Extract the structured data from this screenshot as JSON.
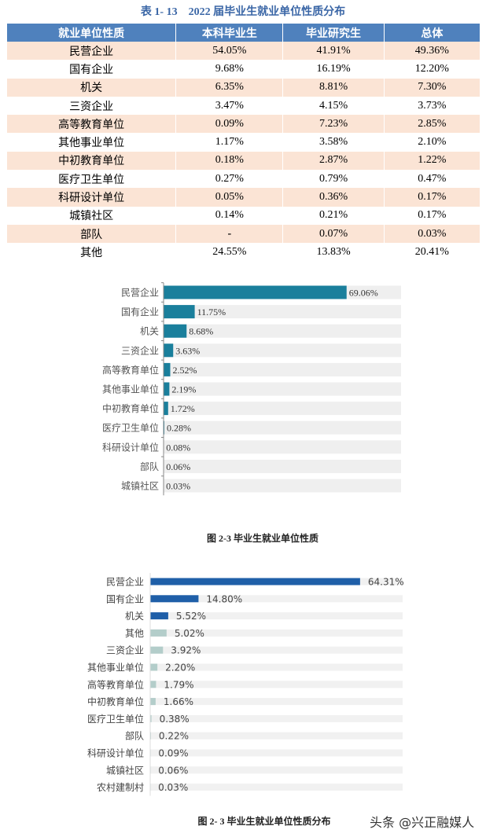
{
  "table": {
    "title": "表 1- 13　2022 届毕业生就业单位性质分布",
    "headers": [
      "就业单位性质",
      "本科毕业生",
      "毕业研究生",
      "总体"
    ],
    "rows": [
      [
        "民营企业",
        "54.05%",
        "41.91%",
        "49.36%"
      ],
      [
        "国有企业",
        "9.68%",
        "16.19%",
        "12.20%"
      ],
      [
        "机关",
        "6.35%",
        "8.81%",
        "7.30%"
      ],
      [
        "三资企业",
        "3.47%",
        "4.15%",
        "3.73%"
      ],
      [
        "高等教育单位",
        "0.09%",
        "7.23%",
        "2.85%"
      ],
      [
        "其他事业单位",
        "1.17%",
        "3.58%",
        "2.10%"
      ],
      [
        "中初教育单位",
        "0.18%",
        "2.87%",
        "1.22%"
      ],
      [
        "医疗卫生单位",
        "0.27%",
        "0.79%",
        "0.47%"
      ],
      [
        "科研设计单位",
        "0.05%",
        "0.36%",
        "0.17%"
      ],
      [
        "城镇社区",
        "0.14%",
        "0.21%",
        "0.17%"
      ],
      [
        "部队",
        "-",
        "0.07%",
        "0.03%"
      ],
      [
        "其他",
        "24.55%",
        "13.83%",
        "20.41%"
      ]
    ]
  },
  "chart_data": [
    {
      "type": "bar",
      "orientation": "horizontal",
      "caption": "图 2-3  毕业生就业单位性质",
      "color": "#1a7f9c",
      "categories": [
        "民营企业",
        "国有企业",
        "机关",
        "三资企业",
        "高等教育单位",
        "其他事业单位",
        "中初教育单位",
        "医疗卫生单位",
        "科研设计单位",
        "部队",
        "城镇社区"
      ],
      "values": [
        69.06,
        11.75,
        8.68,
        3.63,
        2.52,
        2.19,
        1.72,
        0.28,
        0.08,
        0.06,
        0.03
      ],
      "labels": [
        "69.06%",
        "11.75%",
        "8.68%",
        "3.63%",
        "2.52%",
        "2.19%",
        "1.72%",
        "0.28%",
        "0.08%",
        "0.06%",
        "0.03%"
      ]
    },
    {
      "type": "bar",
      "orientation": "horizontal",
      "caption": "图 2- 3  毕业生就业单位性质分布",
      "colors": [
        "#1f5fa8",
        "#b3cdca"
      ],
      "categories": [
        "民营企业",
        "国有企业",
        "机关",
        "其他",
        "三资企业",
        "其他事业单位",
        "高等教育单位",
        "中初教育单位",
        "医疗卫生单位",
        "部队",
        "科研设计单位",
        "城镇社区",
        "农村建制村"
      ],
      "values": [
        64.31,
        14.8,
        5.52,
        5.02,
        3.92,
        2.2,
        1.79,
        1.66,
        0.38,
        0.22,
        0.09,
        0.06,
        0.03
      ],
      "labels": [
        "64.31%",
        "14.80%",
        "5.52%",
        "5.02%",
        "3.92%",
        "2.20%",
        "1.79%",
        "1.66%",
        "0.38%",
        "0.22%",
        "0.09%",
        "0.06%",
        "0.03%"
      ]
    }
  ],
  "watermark": "头条 @兴正融媒人"
}
